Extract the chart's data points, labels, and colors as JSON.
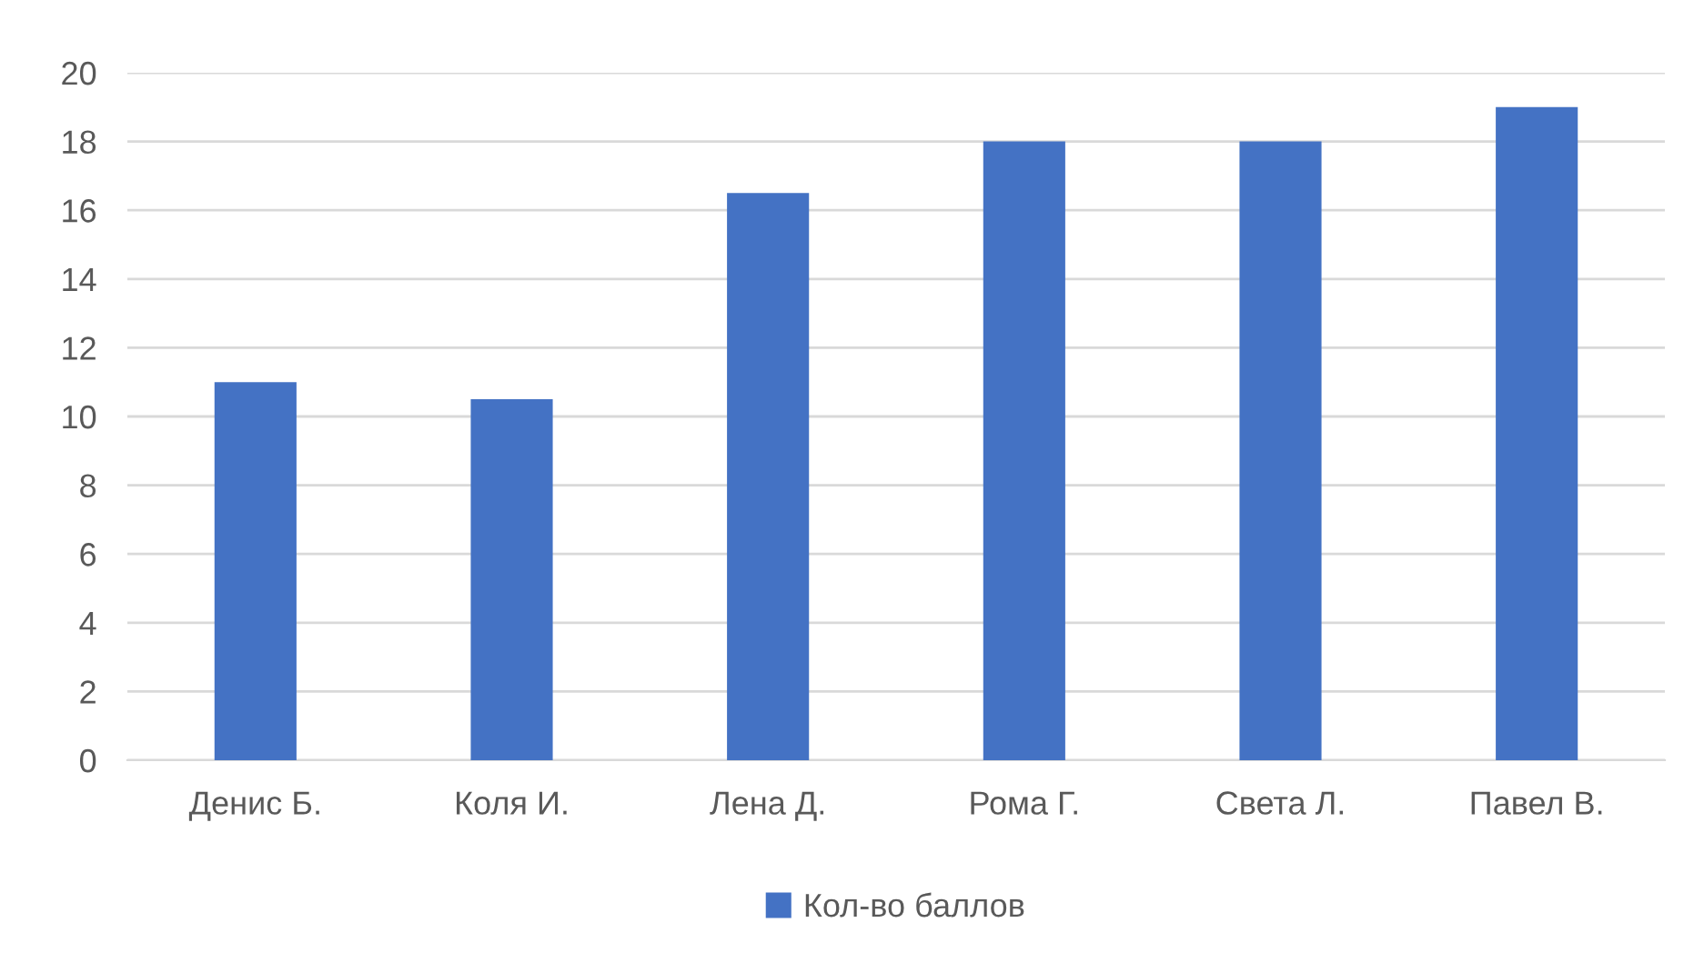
{
  "chart_data": {
    "type": "bar",
    "categories": [
      "Денис Б.",
      "Коля И.",
      "Лена Д.",
      "Рома Г.",
      "Света Л.",
      "Павел В."
    ],
    "series": [
      {
        "name": "Кол-во баллов",
        "color": "#4472c4",
        "values": [
          11,
          10.5,
          16.5,
          18,
          18,
          19
        ]
      }
    ],
    "ylim": [
      0,
      20
    ],
    "yticks": [
      0,
      2,
      4,
      6,
      8,
      10,
      12,
      14,
      16,
      18,
      20
    ],
    "grid": "y",
    "legend": "bottom"
  }
}
